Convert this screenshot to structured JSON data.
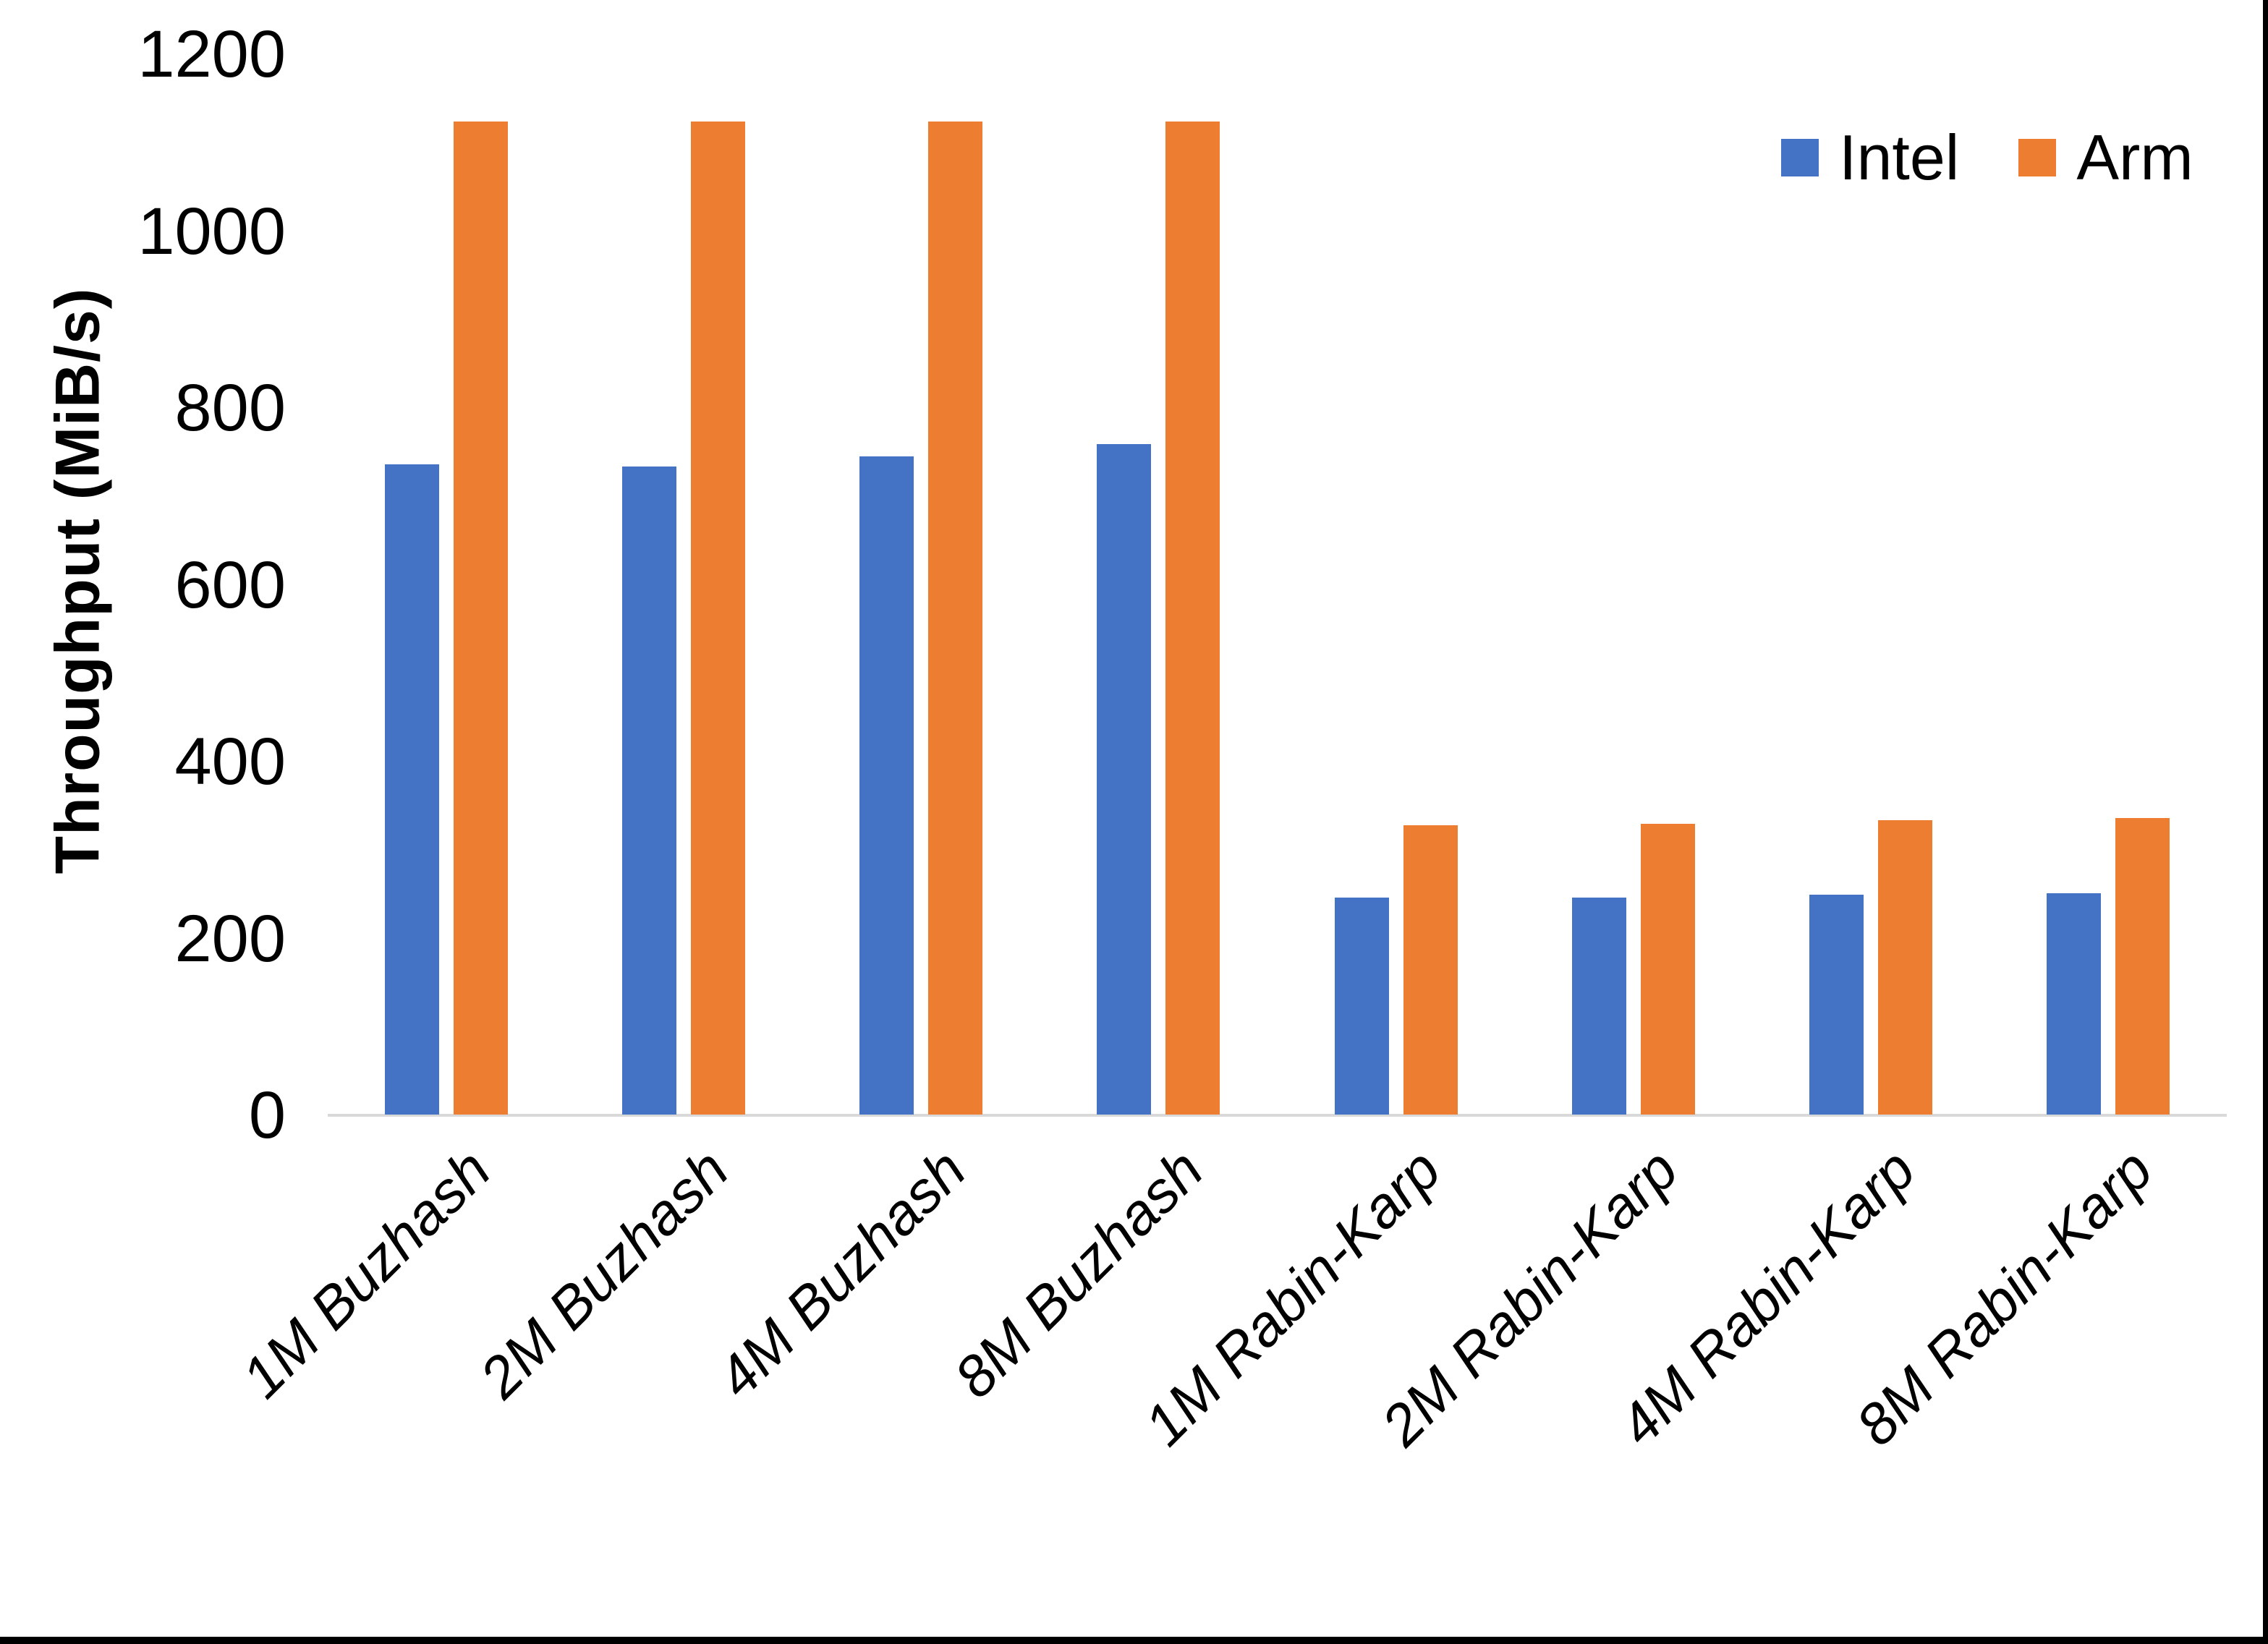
{
  "chart_data": {
    "type": "bar",
    "title": "",
    "xlabel": "",
    "ylabel": "Throughput (MiB/s)",
    "categories": [
      "1M Buzhash",
      "2M Buzhash",
      "4M Buzhash",
      "8M Buzhash",
      "1M Rabin-Karp",
      "2M Rabin-Karp",
      "4M Rabin-Karp",
      "8M Rabin-Karp"
    ],
    "series": [
      {
        "name": "Intel",
        "color": "#4472C4",
        "values": [
          735,
          733,
          744,
          758,
          245,
          245,
          249,
          250
        ]
      },
      {
        "name": "Arm",
        "color": "#ED7D31",
        "values": [
          1123,
          1123,
          1123,
          1123,
          327,
          329,
          333,
          335
        ]
      }
    ],
    "ylim": [
      0,
      1200
    ],
    "yticks": [
      0,
      200,
      400,
      600,
      800,
      1000,
      1200
    ],
    "grid": false,
    "legend_position": "top-right",
    "axis_line_color": "#D9D9D9",
    "background_color": "#FFFFFF",
    "border_color": "#000000"
  }
}
